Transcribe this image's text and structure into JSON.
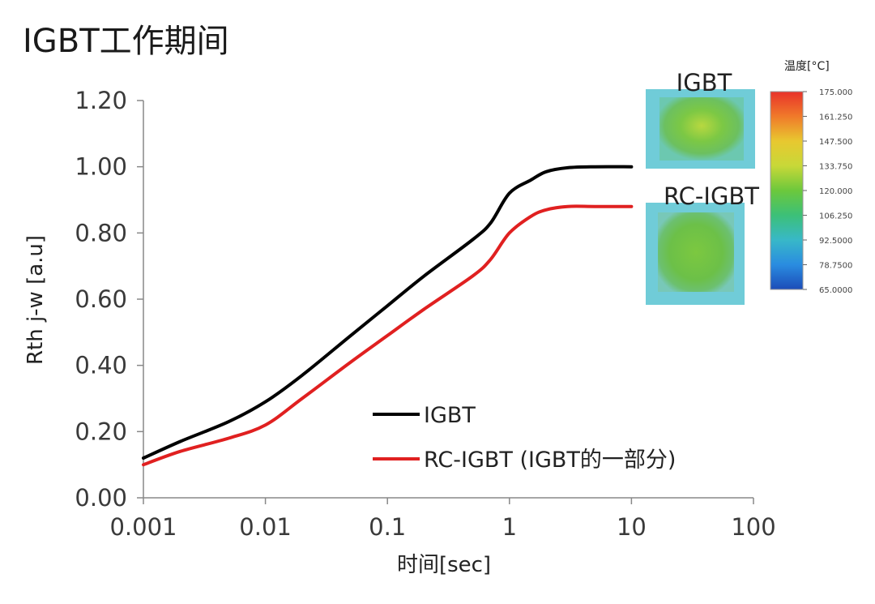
{
  "page": {
    "title": "IGBT工作期间"
  },
  "chart_data": {
    "type": "line",
    "xscale": "log",
    "xlabel": "时间[sec]",
    "ylabel": "Rth j-w [a.u]",
    "xlim": [
      0.001,
      100
    ],
    "ylim": [
      0,
      1.2
    ],
    "x_ticks": [
      "0.001",
      "0.01",
      "0.1",
      "1",
      "10",
      "100"
    ],
    "y_ticks": [
      "0.00",
      "0.20",
      "0.40",
      "0.60",
      "0.80",
      "1.00",
      "1.20"
    ],
    "grid": false,
    "legend_position": "bottom-center",
    "series": [
      {
        "name": "IGBT",
        "color": "#000000",
        "x": [
          0.001,
          0.002,
          0.005,
          0.01,
          0.02,
          0.05,
          0.1,
          0.2,
          0.5,
          0.7,
          1,
          1.5,
          2,
          3,
          5,
          10
        ],
        "y": [
          0.12,
          0.17,
          0.23,
          0.29,
          0.37,
          0.49,
          0.58,
          0.67,
          0.78,
          0.83,
          0.92,
          0.96,
          0.985,
          0.997,
          1.0,
          1.0
        ]
      },
      {
        "name": "RC-IGBT (IGBT的一部分)",
        "color": "#e02020",
        "x": [
          0.001,
          0.002,
          0.005,
          0.01,
          0.02,
          0.05,
          0.1,
          0.2,
          0.5,
          0.7,
          1,
          1.5,
          2,
          3,
          5,
          10
        ],
        "y": [
          0.1,
          0.14,
          0.18,
          0.22,
          0.3,
          0.41,
          0.49,
          0.57,
          0.67,
          0.72,
          0.8,
          0.85,
          0.87,
          0.88,
          0.88,
          0.88
        ]
      }
    ]
  },
  "inset": {
    "label_igbt": "IGBT",
    "label_rc": "RC-IGBT",
    "colorbar": {
      "title": "温度[°C]",
      "ticks": [
        "175.000",
        "161.250",
        "147.500",
        "133.750",
        "120.000",
        "106.250",
        "92.5000",
        "78.7500",
        "65.0000"
      ],
      "colors": [
        "#e8322a",
        "#f07a2a",
        "#e8c830",
        "#c8d838",
        "#6cc83c",
        "#3cc078",
        "#38b8c8",
        "#2a8ce0",
        "#1c4cb8"
      ]
    }
  }
}
